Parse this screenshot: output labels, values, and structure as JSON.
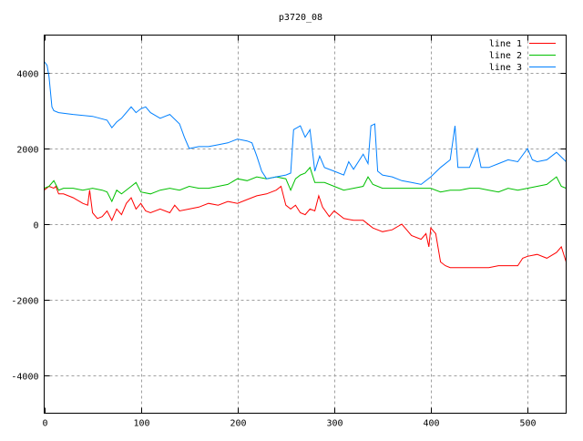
{
  "chart_data": {
    "type": "line",
    "title": "p3720_08",
    "xlabel": "",
    "ylabel": "",
    "xlim": [
      0,
      540
    ],
    "ylim": [
      -5000,
      5000
    ],
    "xticks": [
      0,
      100,
      200,
      300,
      400,
      500
    ],
    "yticks": [
      -4000,
      -2000,
      0,
      2000,
      4000
    ],
    "grid": true,
    "legend_position": "top-right",
    "series": [
      {
        "name": "line 1",
        "color": "#ff0000",
        "x": [
          0,
          5,
          10,
          12,
          15,
          20,
          30,
          40,
          45,
          47,
          50,
          55,
          60,
          65,
          70,
          75,
          80,
          85,
          90,
          95,
          100,
          105,
          110,
          120,
          130,
          135,
          140,
          150,
          160,
          170,
          180,
          190,
          200,
          210,
          220,
          230,
          240,
          245,
          250,
          255,
          260,
          265,
          270,
          275,
          280,
          284,
          288,
          295,
          300,
          310,
          320,
          330,
          340,
          350,
          360,
          370,
          375,
          380,
          390,
          395,
          398,
          400,
          405,
          410,
          415,
          420,
          430,
          440,
          450,
          460,
          470,
          480,
          490,
          495,
          500,
          510,
          520,
          530,
          535,
          540
        ],
        "y": [
          900,
          1000,
          950,
          1000,
          800,
          800,
          700,
          550,
          500,
          900,
          300,
          150,
          200,
          350,
          100,
          400,
          250,
          550,
          700,
          400,
          550,
          350,
          300,
          400,
          300,
          500,
          350,
          400,
          450,
          550,
          500,
          600,
          550,
          650,
          750,
          800,
          900,
          1000,
          500,
          400,
          500,
          300,
          250,
          400,
          350,
          750,
          450,
          200,
          350,
          150,
          100,
          100,
          -100,
          -200,
          -150,
          0,
          -150,
          -300,
          -400,
          -250,
          -600,
          -100,
          -250,
          -1000,
          -1100,
          -1150,
          -1150,
          -1150,
          -1150,
          -1150,
          -1100,
          -1100,
          -1100,
          -900,
          -850,
          -800,
          -900,
          -750,
          -600,
          -1000
        ]
      },
      {
        "name": "line 2",
        "color": "#00c000",
        "x": [
          0,
          5,
          10,
          15,
          20,
          30,
          40,
          50,
          60,
          65,
          70,
          75,
          80,
          90,
          95,
          100,
          110,
          120,
          130,
          140,
          150,
          160,
          170,
          180,
          190,
          200,
          210,
          220,
          230,
          240,
          250,
          255,
          260,
          265,
          270,
          275,
          280,
          290,
          300,
          310,
          320,
          330,
          335,
          340,
          350,
          360,
          370,
          380,
          390,
          400,
          410,
          420,
          430,
          440,
          450,
          460,
          470,
          480,
          490,
          500,
          510,
          520,
          530,
          535,
          540
        ],
        "y": [
          950,
          1000,
          1150,
          900,
          950,
          950,
          900,
          950,
          900,
          850,
          600,
          900,
          800,
          1000,
          1100,
          850,
          800,
          900,
          950,
          900,
          1000,
          950,
          950,
          1000,
          1050,
          1200,
          1150,
          1250,
          1200,
          1250,
          1200,
          900,
          1200,
          1300,
          1350,
          1500,
          1100,
          1100,
          1000,
          900,
          950,
          1000,
          1250,
          1050,
          950,
          950,
          950,
          950,
          950,
          950,
          850,
          900,
          900,
          950,
          950,
          900,
          850,
          950,
          900,
          950,
          1000,
          1050,
          1250,
          1000,
          950
        ]
      },
      {
        "name": "line 3",
        "color": "#0080ff",
        "x": [
          0,
          3,
          5,
          8,
          10,
          15,
          30,
          50,
          65,
          70,
          75,
          80,
          90,
          95,
          100,
          105,
          110,
          120,
          130,
          140,
          145,
          150,
          160,
          170,
          180,
          190,
          200,
          210,
          215,
          220,
          225,
          230,
          240,
          250,
          255,
          258,
          265,
          270,
          275,
          280,
          285,
          290,
          300,
          310,
          315,
          320,
          330,
          335,
          338,
          342,
          345,
          350,
          360,
          370,
          380,
          390,
          400,
          410,
          420,
          425,
          428,
          440,
          448,
          452,
          460,
          470,
          480,
          490,
          500,
          505,
          510,
          520,
          530,
          540
        ],
        "y": [
          4300,
          4200,
          3900,
          3100,
          3000,
          2950,
          2900,
          2850,
          2750,
          2550,
          2700,
          2800,
          3100,
          2950,
          3050,
          3100,
          2950,
          2800,
          2900,
          2650,
          2300,
          2000,
          2050,
          2050,
          2100,
          2150,
          2250,
          2200,
          2150,
          1800,
          1400,
          1200,
          1250,
          1300,
          1350,
          2500,
          2600,
          2300,
          2500,
          1400,
          1800,
          1500,
          1400,
          1300,
          1650,
          1450,
          1850,
          1600,
          2600,
          2650,
          1400,
          1300,
          1250,
          1150,
          1100,
          1050,
          1250,
          1500,
          1700,
          2600,
          1500,
          1500,
          2000,
          1500,
          1500,
          1600,
          1700,
          1650,
          2000,
          1700,
          1650,
          1700,
          1900,
          1650
        ]
      }
    ]
  }
}
